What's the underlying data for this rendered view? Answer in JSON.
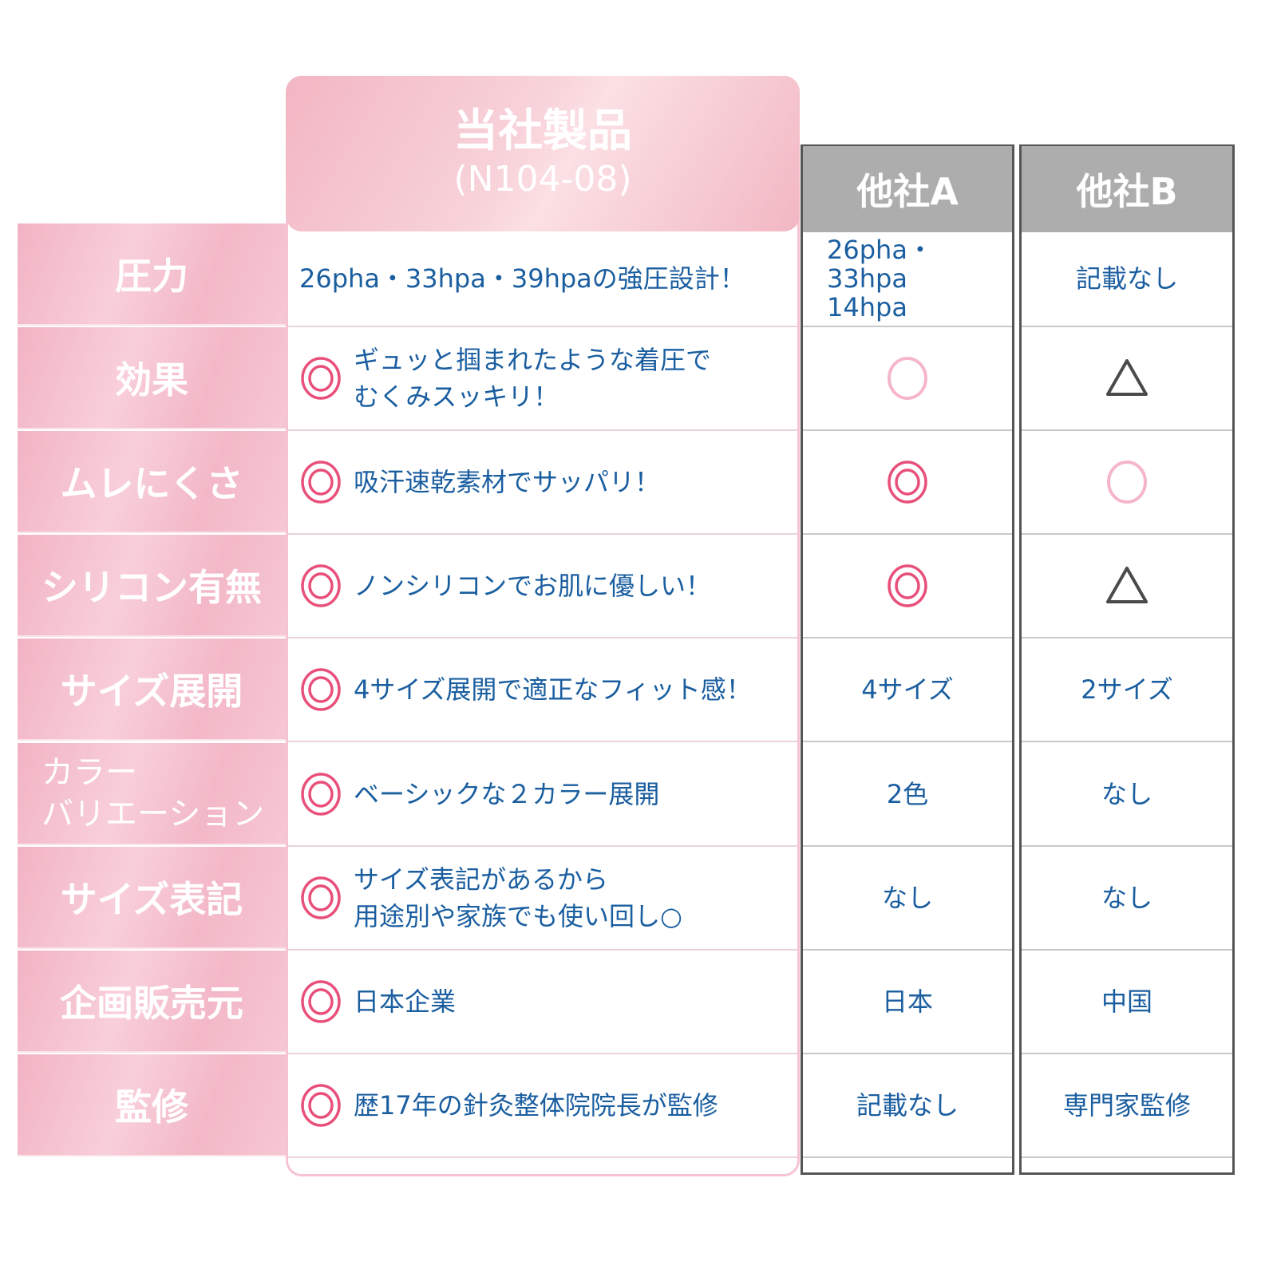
{
  "header": {
    "ours_title": "当社製品",
    "ours_model": "(N104-08)",
    "company_a": "他社A",
    "company_b": "他社B"
  },
  "colors": {
    "double_circle": "#e8507a",
    "circle": "#f5b6c9",
    "triangle": "#4a4a4a",
    "text": "#1a5ea0",
    "label_bg": "#f2b3c3",
    "competitor_header": "#adadad"
  },
  "rows": [
    {
      "label": "圧力",
      "ours": {
        "mark": null,
        "text": "26pha・33hpa・39hpaの強圧設計！"
      },
      "a": {
        "mark": null,
        "text": "26pha・33hpa\n14hpa"
      },
      "b": {
        "mark": null,
        "text": "記載なし"
      }
    },
    {
      "label": "効果",
      "ours": {
        "mark": "double-circle",
        "text": "ギュッと掴まれたような着圧で\nむくみスッキリ！"
      },
      "a": {
        "mark": "circle",
        "text": null
      },
      "b": {
        "mark": "triangle",
        "text": null
      }
    },
    {
      "label": "ムレにくさ",
      "ours": {
        "mark": "double-circle",
        "text": "吸汗速乾素材でサッパリ！"
      },
      "a": {
        "mark": "double-circle",
        "text": null
      },
      "b": {
        "mark": "circle",
        "text": null
      }
    },
    {
      "label": "シリコン有無",
      "ours": {
        "mark": "double-circle",
        "text": "ノンシリコンでお肌に優しい！"
      },
      "a": {
        "mark": "double-circle",
        "text": null
      },
      "b": {
        "mark": "triangle",
        "text": null
      }
    },
    {
      "label": "サイズ展開",
      "ours": {
        "mark": "double-circle",
        "text": "4サイズ展開で適正なフィット感！"
      },
      "a": {
        "mark": null,
        "text": "4サイズ"
      },
      "b": {
        "mark": null,
        "text": "2サイズ"
      }
    },
    {
      "label": "カラー\nバリエーション",
      "ours": {
        "mark": "double-circle",
        "text": "ベーシックな２カラー展開"
      },
      "a": {
        "mark": null,
        "text": "2色"
      },
      "b": {
        "mark": null,
        "text": "なし"
      }
    },
    {
      "label": "サイズ表記",
      "ours": {
        "mark": "double-circle",
        "text": "サイズ表記があるから\n用途別や家族でも使い回し○"
      },
      "a": {
        "mark": null,
        "text": "なし"
      },
      "b": {
        "mark": null,
        "text": "なし"
      }
    },
    {
      "label": "企画販売元",
      "ours": {
        "mark": "double-circle",
        "text": "日本企業"
      },
      "a": {
        "mark": null,
        "text": "日本"
      },
      "b": {
        "mark": null,
        "text": "中国"
      }
    },
    {
      "label": "監修",
      "ours": {
        "mark": "double-circle",
        "text": "歴17年の針灸整体院院長が監修"
      },
      "a": {
        "mark": null,
        "text": "記載なし"
      },
      "b": {
        "mark": null,
        "text": "専門家監修"
      }
    }
  ]
}
